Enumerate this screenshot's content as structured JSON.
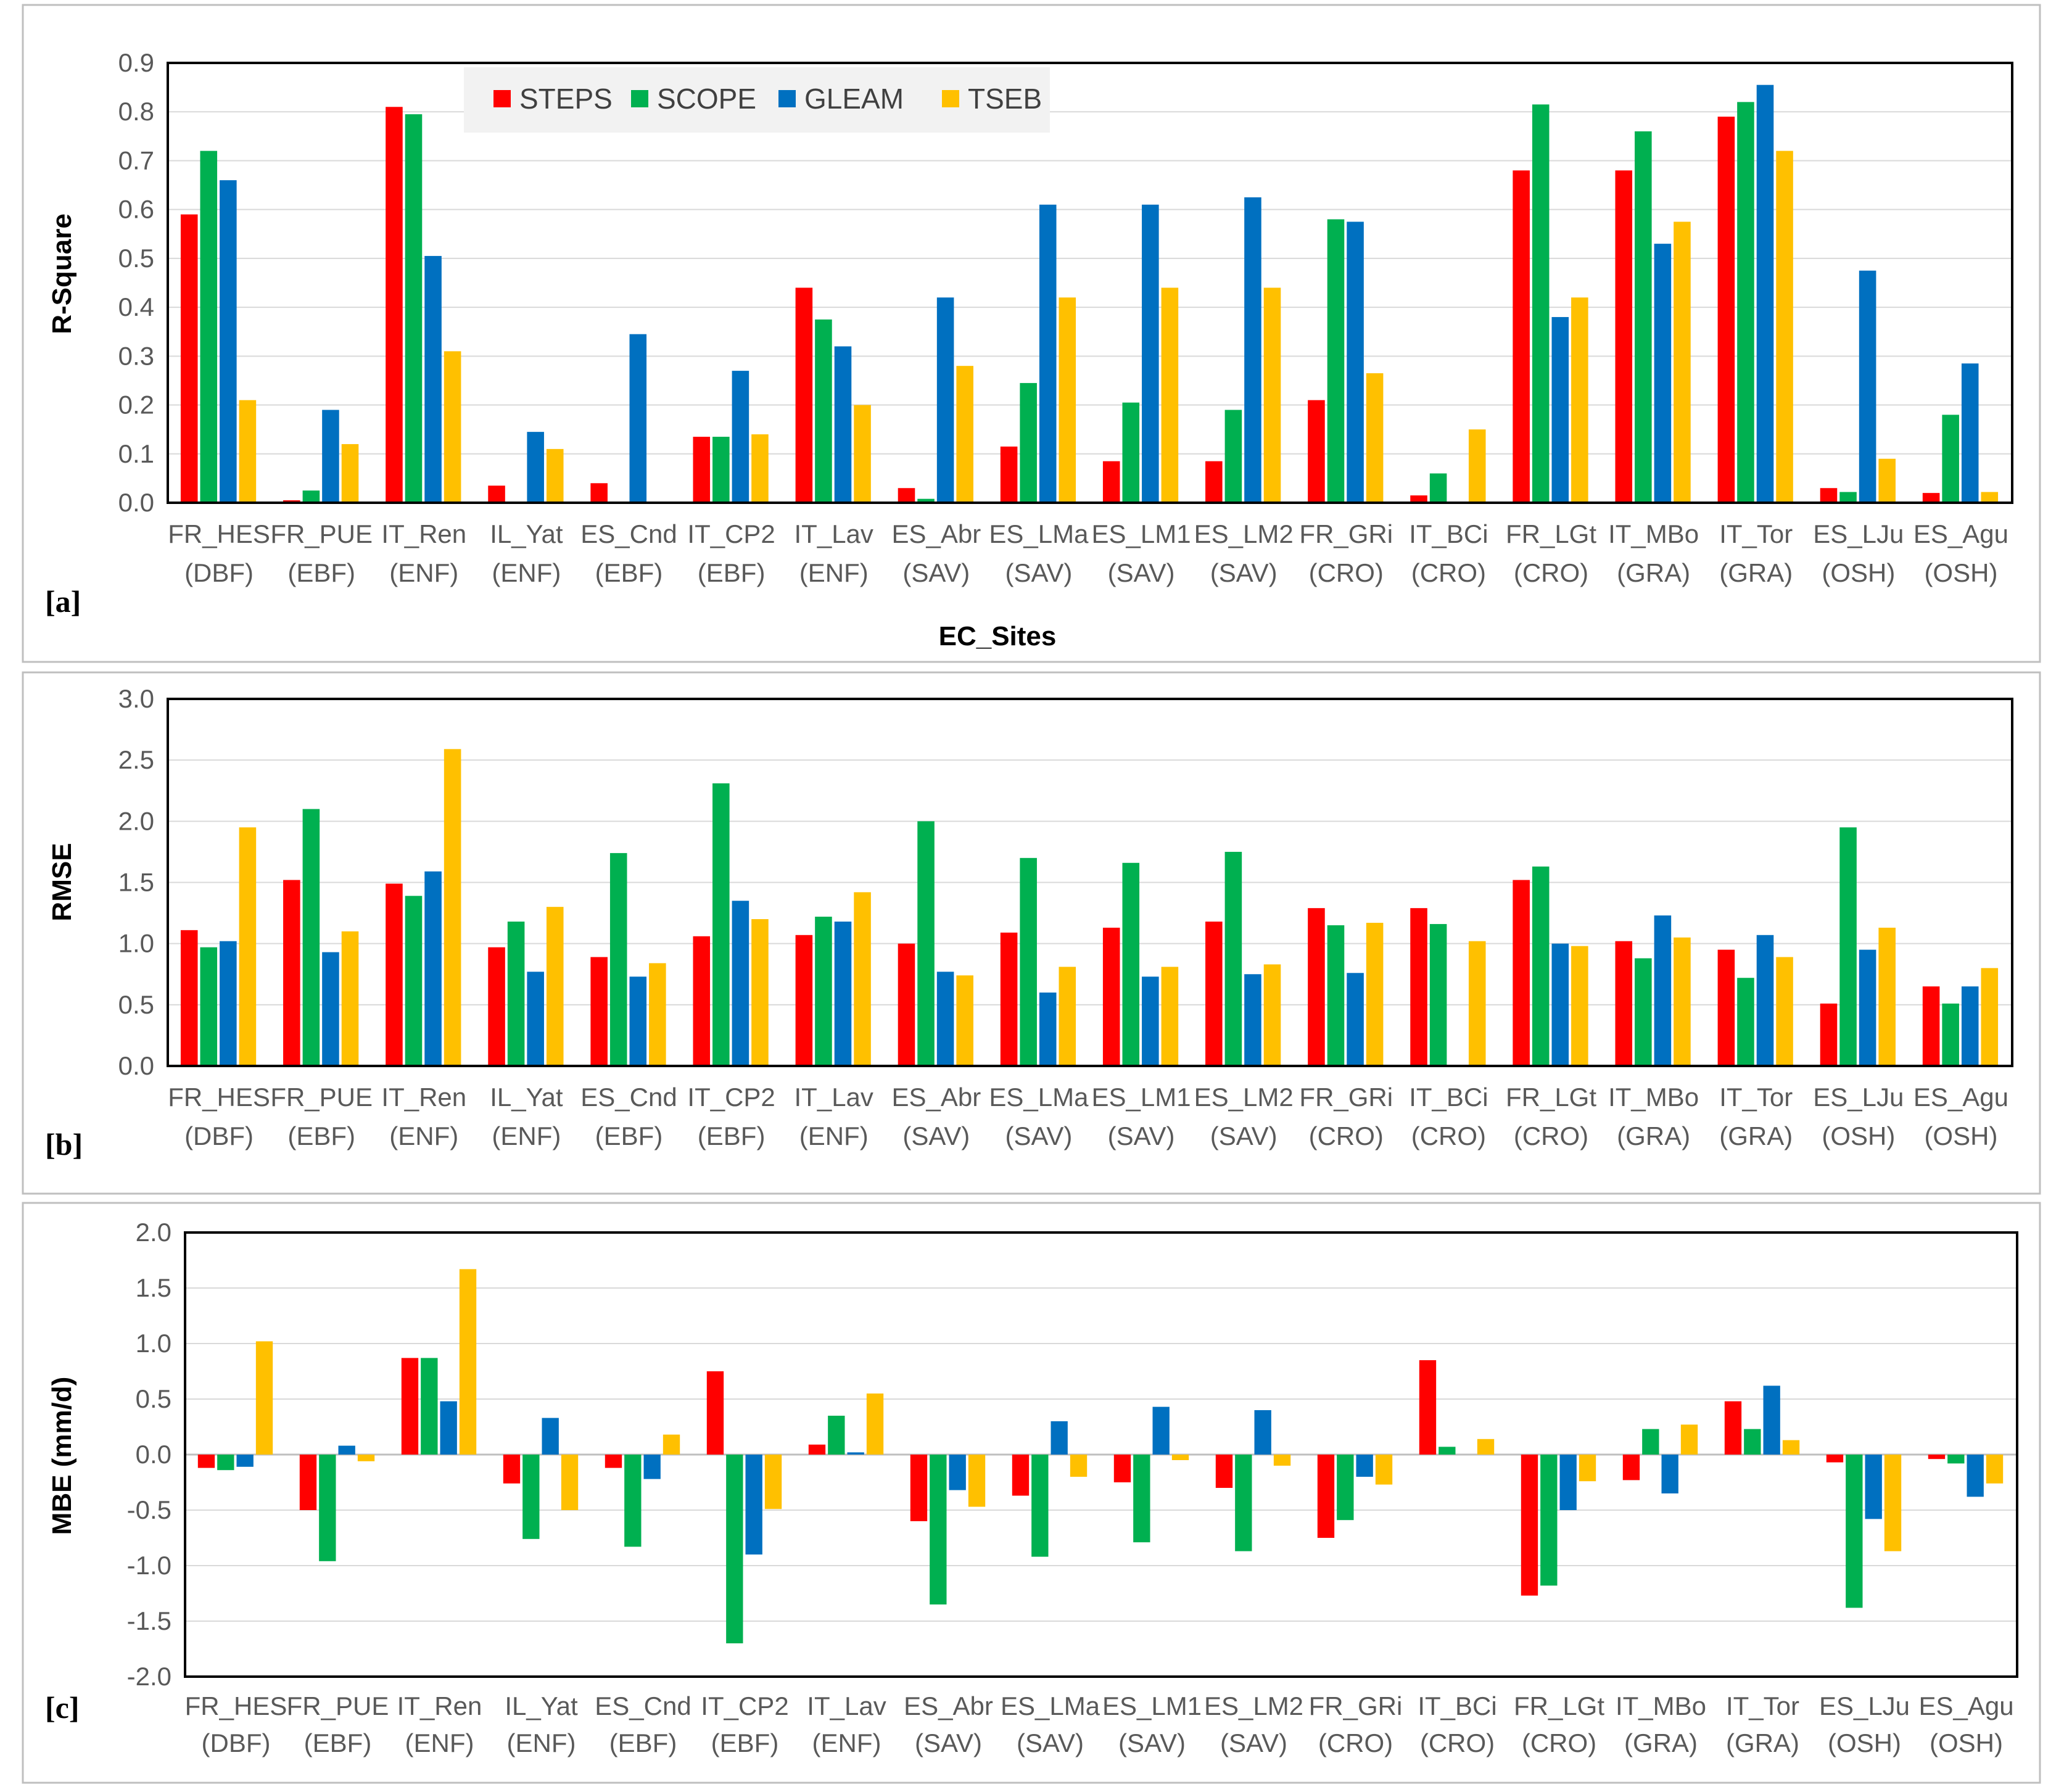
{
  "colors": {
    "STEPS": "#ff0000",
    "SCOPE": "#00b050",
    "GLEAM": "#0070c0",
    "TSEB": "#ffc000"
  },
  "legend": [
    "STEPS",
    "SCOPE",
    "GLEAM",
    "TSEB"
  ],
  "sites": [
    {
      "name": "FR_HES",
      "type": "(DBF)"
    },
    {
      "name": "FR_PUE",
      "type": "(EBF)"
    },
    {
      "name": "IT_Ren",
      "type": "(ENF)"
    },
    {
      "name": "IL_Yat",
      "type": "(ENF)"
    },
    {
      "name": "ES_Cnd",
      "type": "(EBF)"
    },
    {
      "name": "IT_CP2",
      "type": "(EBF)"
    },
    {
      "name": "IT_Lav",
      "type": "(ENF)"
    },
    {
      "name": "ES_Abr",
      "type": "(SAV)"
    },
    {
      "name": "ES_LMa",
      "type": "(SAV)"
    },
    {
      "name": "ES_LM1",
      "type": "(SAV)"
    },
    {
      "name": "ES_LM2",
      "type": "(SAV)"
    },
    {
      "name": "FR_GRi",
      "type": "(CRO)"
    },
    {
      "name": "IT_BCi",
      "type": "(CRO)"
    },
    {
      "name": "FR_LGt",
      "type": "(CRO)"
    },
    {
      "name": "IT_MBo",
      "type": "(GRA)"
    },
    {
      "name": "IT_Tor",
      "type": "(GRA)"
    },
    {
      "name": "ES_LJu",
      "type": "(OSH)"
    },
    {
      "name": "ES_Agu",
      "type": "(OSH)"
    }
  ],
  "chart_data": [
    {
      "id": "a",
      "type": "bar",
      "panel_label": "[a]",
      "ylabel": "R-Square",
      "xlabel": "EC_Sites",
      "ylim": [
        0,
        0.9
      ],
      "yticks": [
        0.0,
        0.1,
        0.2,
        0.3,
        0.4,
        0.5,
        0.6,
        0.7,
        0.8,
        0.9
      ],
      "tick_labels": [
        "0.0",
        "0.1",
        "0.2",
        "0.3",
        "0.4",
        "0.5",
        "0.6",
        "0.7",
        "0.8",
        "0.9"
      ],
      "series": [
        {
          "name": "STEPS",
          "values": [
            0.59,
            0.005,
            0.81,
            0.035,
            0.04,
            0.135,
            0.44,
            0.03,
            0.115,
            0.085,
            0.085,
            0.21,
            0.015,
            0.68,
            0.68,
            0.79,
            0.03,
            0.02
          ]
        },
        {
          "name": "SCOPE",
          "values": [
            0.72,
            0.025,
            0.795,
            0.0,
            0.0,
            0.135,
            0.375,
            0.008,
            0.245,
            0.205,
            0.19,
            0.58,
            0.06,
            0.815,
            0.76,
            0.82,
            0.022,
            0.18
          ]
        },
        {
          "name": "GLEAM",
          "values": [
            0.66,
            0.19,
            0.505,
            0.145,
            0.345,
            0.27,
            0.32,
            0.42,
            0.61,
            0.61,
            0.625,
            0.575,
            0.0,
            0.38,
            0.53,
            0.855,
            0.475,
            0.285
          ]
        },
        {
          "name": "TSEB",
          "values": [
            0.21,
            0.12,
            0.31,
            0.11,
            0.0,
            0.14,
            0.2,
            0.28,
            0.42,
            0.44,
            0.44,
            0.265,
            0.15,
            0.42,
            0.575,
            0.72,
            0.09,
            0.022
          ]
        }
      ]
    },
    {
      "id": "b",
      "type": "bar",
      "panel_label": "[b]",
      "ylabel": "RMSE",
      "ylim": [
        0,
        3.0
      ],
      "yticks": [
        0.0,
        0.5,
        1.0,
        1.5,
        2.0,
        2.5,
        3.0
      ],
      "tick_labels": [
        "0.0",
        "0.5",
        "1.0",
        "1.5",
        "2.0",
        "2.5",
        "3.0"
      ],
      "series": [
        {
          "name": "STEPS",
          "values": [
            1.11,
            1.52,
            1.49,
            0.97,
            0.89,
            1.06,
            1.07,
            1.0,
            1.09,
            1.13,
            1.18,
            1.29,
            1.29,
            1.52,
            1.02,
            0.95,
            0.51,
            0.65
          ]
        },
        {
          "name": "SCOPE",
          "values": [
            0.97,
            2.1,
            1.39,
            1.18,
            1.74,
            2.31,
            1.22,
            2.0,
            1.7,
            1.66,
            1.75,
            1.15,
            1.16,
            1.63,
            0.88,
            0.72,
            1.95,
            0.51
          ]
        },
        {
          "name": "GLEAM",
          "values": [
            1.02,
            0.93,
            1.59,
            0.77,
            0.73,
            1.35,
            1.18,
            0.77,
            0.6,
            0.73,
            0.75,
            0.76,
            0.0,
            1.0,
            1.23,
            1.07,
            0.95,
            0.65
          ]
        },
        {
          "name": "TSEB",
          "values": [
            1.95,
            1.1,
            2.59,
            1.3,
            0.84,
            1.2,
            1.42,
            0.74,
            0.81,
            0.81,
            0.83,
            1.17,
            1.02,
            0.98,
            1.05,
            0.89,
            1.13,
            0.8
          ]
        }
      ]
    },
    {
      "id": "c",
      "type": "bar",
      "panel_label": "[c]",
      "ylabel": "MBE (mm/d)",
      "ylim": [
        -2.0,
        2.0
      ],
      "yticks": [
        -2.0,
        -1.5,
        -1.0,
        -0.5,
        0.0,
        0.5,
        1.0,
        1.5,
        2.0
      ],
      "tick_labels": [
        "-2.0",
        "-1.5",
        "-1.0",
        "-0.5",
        "0.0",
        "0.5",
        "1.0",
        "1.5",
        "2.0"
      ],
      "series": [
        {
          "name": "STEPS",
          "values": [
            -0.12,
            -0.5,
            0.87,
            -0.26,
            -0.12,
            0.75,
            0.09,
            -0.6,
            -0.37,
            -0.25,
            -0.3,
            -0.75,
            0.85,
            -1.27,
            -0.23,
            0.48,
            -0.07,
            -0.04
          ]
        },
        {
          "name": "SCOPE",
          "values": [
            -0.14,
            -0.96,
            0.87,
            -0.76,
            -0.83,
            -1.7,
            0.35,
            -1.35,
            -0.92,
            -0.79,
            -0.87,
            -0.59,
            0.07,
            -1.18,
            0.23,
            0.23,
            -1.38,
            -0.08
          ]
        },
        {
          "name": "GLEAM",
          "values": [
            -0.11,
            0.08,
            0.48,
            0.33,
            -0.22,
            -0.9,
            0.02,
            -0.32,
            0.3,
            0.43,
            0.4,
            -0.2,
            0.0,
            -0.5,
            -0.35,
            0.62,
            -0.58,
            -0.38
          ]
        },
        {
          "name": "TSEB",
          "values": [
            1.02,
            -0.06,
            1.67,
            -0.5,
            0.18,
            -0.49,
            0.55,
            -0.47,
            -0.2,
            -0.05,
            -0.1,
            -0.27,
            0.14,
            -0.24,
            0.27,
            0.13,
            -0.87,
            -0.26
          ]
        }
      ]
    }
  ]
}
